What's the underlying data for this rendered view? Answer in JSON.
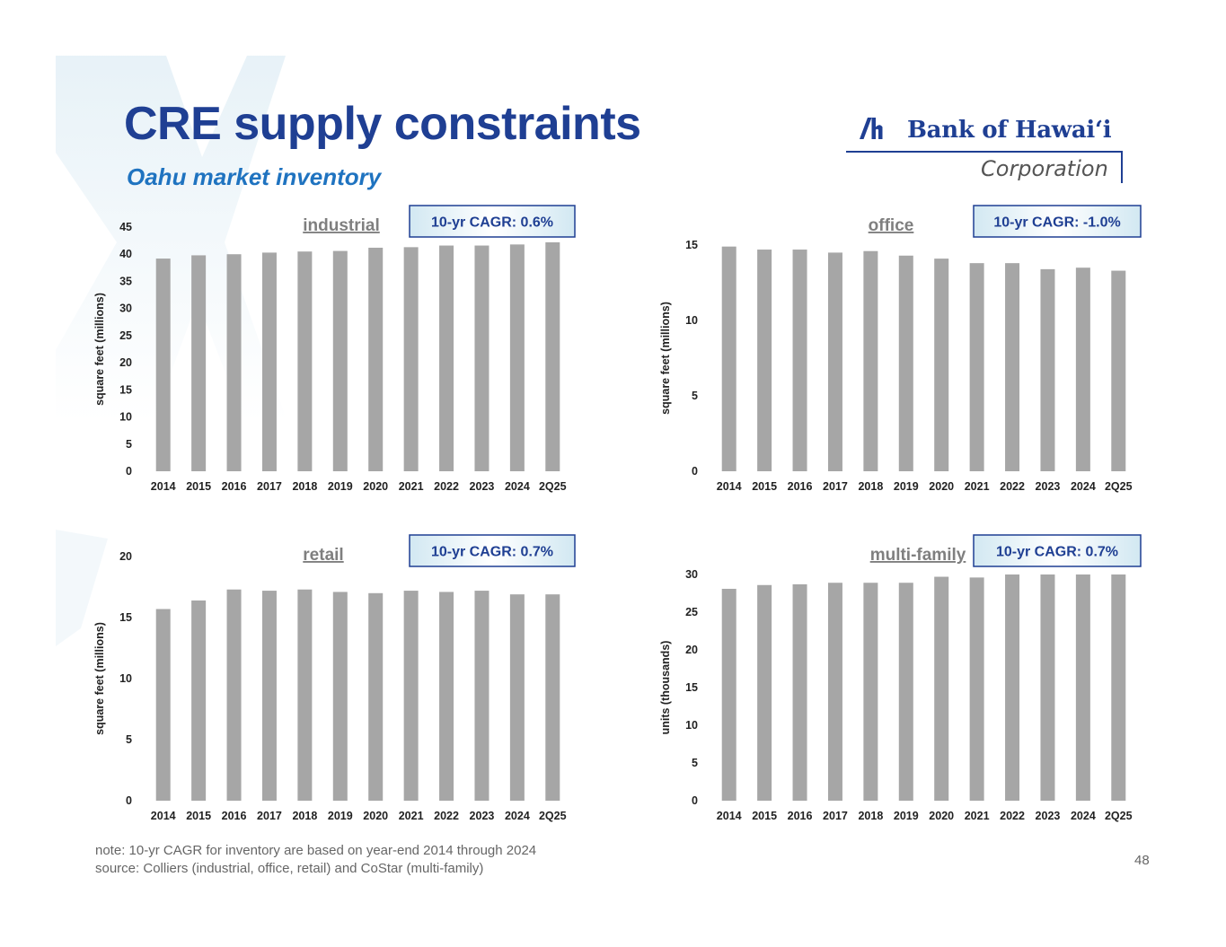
{
  "header": {
    "title": "CRE supply constraints",
    "subtitle": "Oahu market inventory"
  },
  "logo": {
    "brand": "Bank of Hawaiʻi",
    "sub": "Corporation"
  },
  "footer": {
    "note": "note: 10-yr CAGR for inventory are based on year-end 2014 through 2024",
    "source": "source: Colliers (industrial, office, retail) and CoStar (multi-family)",
    "page": "48"
  },
  "colors": {
    "title": "#1f3f93",
    "subtitle": "#1f73c0",
    "bar": "#a6a6a6",
    "cagr_border": "#1f3f93"
  },
  "chart_data": [
    {
      "type": "bar",
      "title": "industrial",
      "cagr": "10-yr CAGR: 0.6%",
      "ylabel": "square feet (millions)",
      "categories": [
        "2014",
        "2015",
        "2016",
        "2017",
        "2018",
        "2019",
        "2020",
        "2021",
        "2022",
        "2023",
        "2024",
        "2Q25"
      ],
      "values": [
        39.2,
        39.8,
        40.0,
        40.3,
        40.5,
        40.6,
        41.2,
        41.3,
        41.6,
        41.6,
        41.8,
        42.2
      ],
      "ylim": [
        0,
        45
      ],
      "yticks": [
        "0",
        "5",
        "10",
        "15",
        "20",
        "25",
        "30",
        "35",
        "40",
        "45"
      ]
    },
    {
      "type": "bar",
      "title": "office",
      "cagr": "10-yr CAGR: -1.0%",
      "ylabel": "square feet (millions)",
      "categories": [
        "2014",
        "2015",
        "2016",
        "2017",
        "2018",
        "2019",
        "2020",
        "2021",
        "2022",
        "2023",
        "2024",
        "2Q25"
      ],
      "values": [
        14.9,
        14.7,
        14.7,
        14.5,
        14.6,
        14.3,
        14.1,
        13.8,
        13.8,
        13.4,
        13.5,
        13.3
      ],
      "ylim": [
        0,
        15
      ],
      "yticks": [
        "0",
        "5",
        "10",
        "15"
      ]
    },
    {
      "type": "bar",
      "title": "retail",
      "cagr": "10-yr CAGR: 0.7%",
      "ylabel": "square feet (millions)",
      "categories": [
        "2014",
        "2015",
        "2016",
        "2017",
        "2018",
        "2019",
        "2020",
        "2021",
        "2022",
        "2023",
        "2024",
        "2Q25"
      ],
      "values": [
        15.7,
        16.4,
        17.3,
        17.2,
        17.3,
        17.1,
        17.0,
        17.2,
        17.1,
        17.2,
        16.9,
        16.9
      ],
      "ylim": [
        0,
        20
      ],
      "yticks": [
        "0",
        "5",
        "10",
        "15",
        "20"
      ]
    },
    {
      "type": "bar",
      "title": "multi-family",
      "cagr": "10-yr CAGR: 0.7%",
      "ylabel": "units (thousands)",
      "categories": [
        "2014",
        "2015",
        "2016",
        "2017",
        "2018",
        "2019",
        "2020",
        "2021",
        "2022",
        "2023",
        "2024",
        "2Q25"
      ],
      "values": [
        28.1,
        28.6,
        28.7,
        28.9,
        28.9,
        28.9,
        29.7,
        29.6,
        30.0,
        30.0,
        30.0,
        30.0
      ],
      "ylim": [
        0,
        30
      ],
      "yticks": [
        "0",
        "5",
        "10",
        "15",
        "20",
        "25",
        "30"
      ]
    }
  ]
}
